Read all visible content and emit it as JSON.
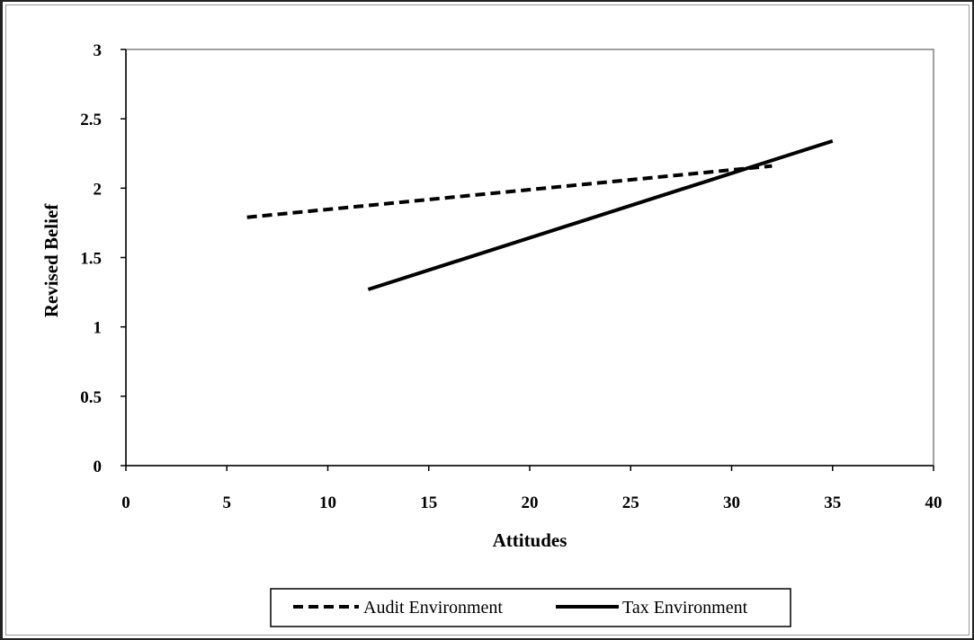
{
  "chart_data": {
    "type": "line",
    "xlabel": "Attitudes",
    "ylabel": "Revised Belief",
    "xlim": [
      0,
      40
    ],
    "ylim": [
      0,
      3
    ],
    "xticks": [
      0,
      5,
      10,
      15,
      20,
      25,
      30,
      35,
      40
    ],
    "yticks": [
      0,
      0.5,
      1,
      1.5,
      2,
      2.5,
      3
    ],
    "grid": false,
    "legend_position": "bottom",
    "series": [
      {
        "name": "Audit Environment",
        "style": "dashed",
        "color": "#000000",
        "x": [
          6,
          32
        ],
        "y": [
          1.79,
          2.16
        ]
      },
      {
        "name": "Tax Environment",
        "style": "solid",
        "color": "#000000",
        "x": [
          12,
          35
        ],
        "y": [
          1.27,
          2.34
        ]
      }
    ]
  }
}
